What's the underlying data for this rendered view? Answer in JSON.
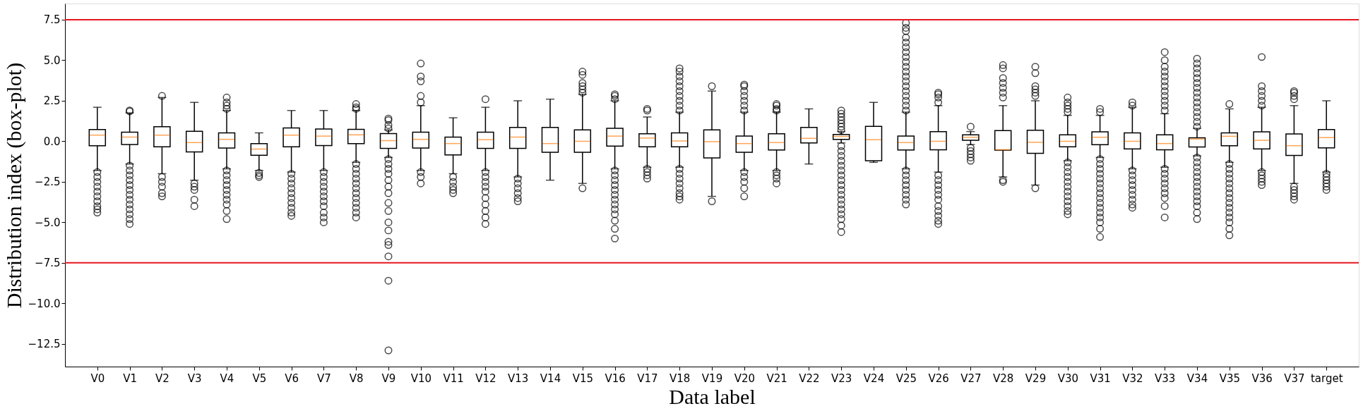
{
  "chart_data": {
    "type": "box",
    "xlabel": "Data label",
    "ylabel": "Distribution index (box-plot)",
    "categories": [
      "V0",
      "V1",
      "V2",
      "V3",
      "V4",
      "V5",
      "V6",
      "V7",
      "V8",
      "V9",
      "V10",
      "V11",
      "V12",
      "V13",
      "V14",
      "V15",
      "V16",
      "V17",
      "V18",
      "V19",
      "V20",
      "V21",
      "V22",
      "V23",
      "V24",
      "V25",
      "V26",
      "V27",
      "V28",
      "V29",
      "V30",
      "V31",
      "V32",
      "V33",
      "V34",
      "V35",
      "V36",
      "V37",
      "target"
    ],
    "ylim": [
      -13.9,
      8.5
    ],
    "yticks": [
      {
        "value": -12.5,
        "label": "−12.5"
      },
      {
        "value": -10,
        "label": "−10.0"
      },
      {
        "value": -7.5,
        "label": "−7.5"
      },
      {
        "value": -5,
        "label": "−5.0"
      },
      {
        "value": -2.5,
        "label": "−2.5"
      },
      {
        "value": 0,
        "label": "0.0"
      },
      {
        "value": 2.5,
        "label": "2.5"
      },
      {
        "value": 5,
        "label": "5.0"
      },
      {
        "value": 7.5,
        "label": "7.5"
      }
    ],
    "grid": false,
    "marker": "circle",
    "ref_lines": [
      {
        "axis": "y",
        "value": 7.5,
        "color": "#e8161f"
      },
      {
        "axis": "y",
        "value": -7.5,
        "color": "#e8161f"
      }
    ],
    "series": [
      {
        "color": "#000000",
        "boxes": [
          {
            "low": -1.8,
            "q1": -0.28,
            "median": 0.38,
            "q3": 0.72,
            "high": 2.1,
            "outliers": [
              -1.9,
              -2.2,
              -2.5,
              -2.8,
              -3.1,
              -3.4,
              -3.7,
              -4.0,
              -4.2,
              -4.4
            ]
          },
          {
            "low": -1.4,
            "q1": -0.2,
            "median": 0.26,
            "q3": 0.56,
            "high": 1.75,
            "outliers": [
              1.85,
              1.9,
              -1.5,
              -1.8,
              -2.1,
              -2.4,
              -2.7,
              -3.0,
              -3.3,
              -3.6,
              -3.9,
              -4.2,
              -4.5,
              -4.8,
              -5.1
            ]
          },
          {
            "low": -2.0,
            "q1": -0.34,
            "median": 0.38,
            "q3": 0.9,
            "high": 2.7,
            "outliers": [
              2.8,
              -2.2,
              -2.5,
              -2.8,
              -3.2,
              -3.4
            ]
          },
          {
            "low": -2.4,
            "q1": -0.66,
            "median": -0.08,
            "q3": 0.62,
            "high": 2.4,
            "outliers": [
              -2.6,
              -2.8,
              -3.0,
              -3.6,
              -4.0
            ]
          },
          {
            "low": -1.7,
            "q1": -0.42,
            "median": 0.12,
            "q3": 0.52,
            "high": 1.9,
            "outliers": [
              2.0,
              2.2,
              2.4,
              2.7,
              -1.8,
              -2.1,
              -2.4,
              -2.7,
              -3.0,
              -3.3,
              -3.6,
              -3.9,
              -4.3,
              -4.8
            ]
          },
          {
            "low": -1.8,
            "q1": -0.86,
            "median": -0.48,
            "q3": -0.14,
            "high": 0.52,
            "outliers": [
              -1.95,
              -2.1,
              -2.2
            ]
          },
          {
            "low": -1.9,
            "q1": -0.34,
            "median": 0.38,
            "q3": 0.82,
            "high": 1.9,
            "outliers": [
              -2.0,
              -2.3,
              -2.6,
              -2.9,
              -3.2,
              -3.5,
              -3.8,
              -4.1,
              -4.4,
              -4.6
            ]
          },
          {
            "low": -1.8,
            "q1": -0.26,
            "median": 0.32,
            "q3": 0.76,
            "high": 1.9,
            "outliers": [
              -1.9,
              -2.2,
              -2.5,
              -2.8,
              -3.1,
              -3.4,
              -3.7,
              -4.0,
              -4.4,
              -4.7,
              -5.0
            ]
          },
          {
            "low": -1.3,
            "q1": -0.14,
            "median": 0.4,
            "q3": 0.74,
            "high": 1.9,
            "outliers": [
              2.0,
              2.1,
              2.3,
              -1.4,
              -1.7,
              -2.0,
              -2.3,
              -2.6,
              -2.9,
              -3.2,
              -3.5,
              -3.8,
              -4.1,
              -4.4,
              -4.7
            ]
          },
          {
            "low": -1.0,
            "q1": -0.44,
            "median": 0.04,
            "q3": 0.48,
            "high": 0.7,
            "outliers": [
              0.8,
              1.0,
              1.3,
              1.4,
              -1.1,
              -1.4,
              -1.7,
              -2.0,
              -2.4,
              -2.8,
              -3.2,
              -3.8,
              -4.3,
              -5.0,
              -5.5,
              -6.2,
              -6.4,
              -7.1,
              -8.6,
              -12.9
            ]
          },
          {
            "low": -1.8,
            "q1": -0.42,
            "median": 0.12,
            "q3": 0.56,
            "high": 2.2,
            "outliers": [
              2.4,
              2.8,
              3.7,
              4.0,
              4.8,
              -1.9,
              -2.2,
              -2.6
            ]
          },
          {
            "low": -2.0,
            "q1": -0.84,
            "median": -0.14,
            "q3": 0.26,
            "high": 1.45,
            "outliers": [
              -2.2,
              -2.5,
              -2.8,
              -3.0,
              -3.2
            ]
          },
          {
            "low": -1.8,
            "q1": -0.44,
            "median": 0.1,
            "q3": 0.56,
            "high": 2.1,
            "outliers": [
              2.6,
              -1.9,
              -2.2,
              -2.5,
              -2.8,
              -3.1,
              -3.5,
              -3.9,
              -4.3,
              -4.7,
              -5.1
            ]
          },
          {
            "low": -2.2,
            "q1": -0.44,
            "median": 0.26,
            "q3": 0.86,
            "high": 2.5,
            "outliers": [
              -2.3,
              -2.6,
              -2.9,
              -3.2,
              -3.5,
              -3.7
            ]
          },
          {
            "low": -2.4,
            "q1": -0.68,
            "median": -0.14,
            "q3": 0.86,
            "high": 2.6
          },
          {
            "low": -2.6,
            "q1": -0.68,
            "median": 0.0,
            "q3": 0.7,
            "high": 2.9,
            "outliers": [
              3.0,
              3.2,
              3.4,
              3.6,
              4.1,
              4.3,
              -2.9
            ]
          },
          {
            "low": -1.7,
            "q1": -0.3,
            "median": 0.32,
            "q3": 0.8,
            "high": 2.5,
            "outliers": [
              2.6,
              2.8,
              2.9,
              -1.8,
              -2.1,
              -2.4,
              -2.7,
              -3.0,
              -3.3,
              -3.6,
              -3.9,
              -4.2,
              -4.5,
              -4.9,
              -5.4,
              -6.0
            ]
          },
          {
            "low": -1.6,
            "q1": -0.34,
            "median": 0.2,
            "q3": 0.46,
            "high": 1.5,
            "outliers": [
              1.9,
              2.0,
              -1.7,
              -1.9,
              -2.1,
              -2.3
            ]
          },
          {
            "low": -1.6,
            "q1": -0.34,
            "median": 0.02,
            "q3": 0.52,
            "high": 1.8,
            "outliers": [
              1.9,
              2.2,
              2.5,
              2.8,
              3.1,
              3.4,
              3.7,
              4.0,
              4.3,
              4.5,
              -1.7,
              -2.0,
              -2.3,
              -2.6,
              -2.9,
              -3.2,
              -3.4,
              -3.6
            ]
          },
          {
            "low": -3.4,
            "q1": -1.02,
            "median": -0.02,
            "q3": 0.7,
            "high": 3.1,
            "outliers": [
              3.4,
              -3.7
            ]
          },
          {
            "low": -1.8,
            "q1": -0.68,
            "median": -0.14,
            "q3": 0.32,
            "high": 1.8,
            "outliers": [
              1.9,
              2.2,
              2.5,
              2.8,
              3.1,
              3.4,
              3.5,
              -1.9,
              -2.2,
              -2.5,
              -2.9,
              -3.4
            ]
          },
          {
            "low": -1.8,
            "q1": -0.54,
            "median": -0.08,
            "q3": 0.46,
            "high": 1.8,
            "outliers": [
              1.9,
              2.0,
              2.2,
              2.3,
              -1.9,
              -2.1,
              -2.3,
              -2.6
            ]
          },
          {
            "low": -1.4,
            "q1": -0.1,
            "median": 0.18,
            "q3": 0.86,
            "high": 2.0
          },
          {
            "low": -0.1,
            "q1": 0.12,
            "median": 0.3,
            "q3": 0.42,
            "high": 0.6,
            "outliers": [
              0.7,
              0.9,
              1.1,
              1.3,
              1.5,
              1.7,
              1.9,
              -0.3,
              -0.6,
              -0.9,
              -1.2,
              -1.5,
              -1.8,
              -2.1,
              -2.4,
              -2.7,
              -3.0,
              -3.3,
              -3.6,
              -3.9,
              -4.2,
              -4.5,
              -4.8,
              -5.2,
              -5.6
            ]
          },
          {
            "low": -1.3,
            "q1": -1.2,
            "median": 0.1,
            "q3": 0.92,
            "high": 2.4
          },
          {
            "low": -1.7,
            "q1": -0.54,
            "median": -0.08,
            "q3": 0.32,
            "high": 1.8,
            "outliers": [
              1.9,
              2.2,
              2.5,
              2.8,
              3.1,
              3.4,
              3.7,
              4.0,
              4.3,
              4.6,
              4.9,
              5.2,
              5.5,
              5.8,
              6.1,
              6.4,
              6.8,
              7.0,
              7.3,
              -1.8,
              -2.1,
              -2.4,
              -2.7,
              -3.0,
              -3.3,
              -3.6,
              -3.9
            ]
          },
          {
            "low": -1.9,
            "q1": -0.52,
            "median": 0.0,
            "q3": 0.6,
            "high": 2.2,
            "outliers": [
              2.4,
              2.7,
              2.9,
              3.0,
              -2.1,
              -2.4,
              -2.7,
              -3.0,
              -3.3,
              -3.6,
              -4.0,
              -4.3,
              -4.6,
              -4.9,
              -5.1
            ]
          },
          {
            "low": -0.2,
            "q1": 0.06,
            "median": 0.25,
            "q3": 0.4,
            "high": 0.6,
            "outliers": [
              0.9,
              -0.4,
              -0.6,
              -0.8,
              -1.0,
              -1.2
            ]
          },
          {
            "low": -2.2,
            "q1": -0.55,
            "median": -0.52,
            "q3": 0.66,
            "high": 2.2,
            "outliers": [
              2.7,
              3.0,
              3.3,
              3.6,
              3.9,
              4.5,
              4.7,
              -2.4,
              -2.5
            ]
          },
          {
            "low": -2.7,
            "q1": -0.74,
            "median": -0.06,
            "q3": 0.68,
            "high": 2.5,
            "outliers": [
              2.8,
              3.0,
              3.2,
              3.4,
              4.2,
              4.6,
              -2.9
            ]
          },
          {
            "low": -1.2,
            "q1": -0.34,
            "median": 0.0,
            "q3": 0.4,
            "high": 1.6,
            "outliers": [
              1.8,
              2.0,
              2.2,
              2.4,
              2.7,
              -1.3,
              -1.6,
              -1.9,
              -2.2,
              -2.5,
              -2.8,
              -3.1,
              -3.4,
              -3.7,
              -4.0,
              -4.3,
              -4.5
            ]
          },
          {
            "low": -1.0,
            "q1": -0.21,
            "median": 0.25,
            "q3": 0.58,
            "high": 1.6,
            "outliers": [
              1.8,
              2.0,
              -1.1,
              -1.4,
              -1.7,
              -2.0,
              -2.3,
              -2.6,
              -2.9,
              -3.2,
              -3.5,
              -3.8,
              -4.1,
              -4.4,
              -4.7,
              -5.0,
              -5.4,
              -5.9
            ]
          },
          {
            "low": -1.7,
            "q1": -0.47,
            "median": 0.0,
            "q3": 0.52,
            "high": 2.1,
            "outliers": [
              2.2,
              2.4,
              -1.8,
              -2.1,
              -2.4,
              -2.7,
              -3.0,
              -3.3,
              -3.6,
              -3.9,
              -4.1
            ]
          },
          {
            "low": -1.6,
            "q1": -0.52,
            "median": -0.14,
            "q3": 0.4,
            "high": 1.7,
            "outliers": [
              1.9,
              2.2,
              2.5,
              2.8,
              3.1,
              3.4,
              3.7,
              4.0,
              4.3,
              4.6,
              5.0,
              5.5,
              -1.7,
              -2.0,
              -2.3,
              -2.6,
              -2.9,
              -3.2,
              -3.5,
              -4.0,
              -4.7
            ]
          },
          {
            "low": -0.9,
            "q1": -0.35,
            "median": 0.14,
            "q3": 0.21,
            "high": 0.8,
            "outliers": [
              0.9,
              1.2,
              1.5,
              1.8,
              2.1,
              2.4,
              2.7,
              3.0,
              3.3,
              3.6,
              3.9,
              4.2,
              4.5,
              4.8,
              5.1,
              -1.0,
              -1.3,
              -1.6,
              -1.9,
              -2.2,
              -2.5,
              -2.8,
              -3.1,
              -3.4,
              -3.7,
              -4.0,
              -4.4,
              -4.8
            ]
          },
          {
            "low": -1.3,
            "q1": -0.27,
            "median": 0.31,
            "q3": 0.52,
            "high": 2.0,
            "outliers": [
              2.3,
              -1.4,
              -1.7,
              -2.0,
              -2.3,
              -2.6,
              -2.9,
              -3.2,
              -3.5,
              -3.8,
              -4.1,
              -4.4,
              -4.7,
              -5.0,
              -5.4,
              -5.8
            ]
          },
          {
            "low": -1.8,
            "q1": -0.47,
            "median": 0.06,
            "q3": 0.58,
            "high": 2.1,
            "outliers": [
              2.2,
              2.5,
              2.8,
              3.1,
              3.4,
              5.2,
              -1.9,
              -2.1,
              -2.3,
              -2.5,
              -2.7
            ]
          },
          {
            "low": -2.6,
            "q1": -0.87,
            "median": -0.27,
            "q3": 0.45,
            "high": 2.2,
            "outliers": [
              2.6,
              2.8,
              3.0,
              3.1,
              -2.8,
              -3.0,
              -3.2,
              -3.4,
              -3.6
            ]
          },
          {
            "low": -1.9,
            "q1": -0.41,
            "median": 0.23,
            "q3": 0.72,
            "high": 2.5,
            "outliers": [
              -2.0,
              -2.2,
              -2.4,
              -2.6,
              -2.8,
              -3.0
            ]
          }
        ]
      }
    ]
  }
}
